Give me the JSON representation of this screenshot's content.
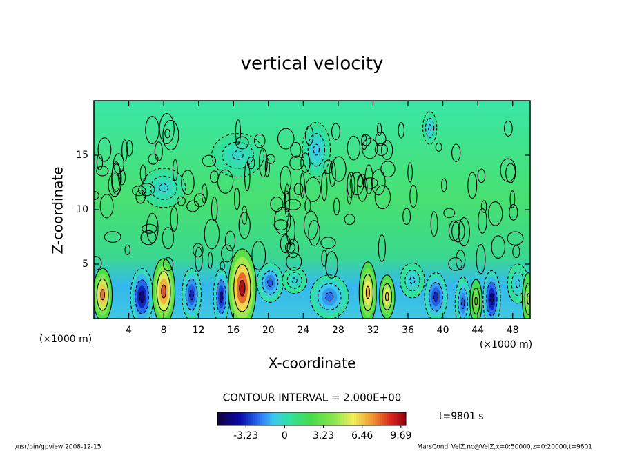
{
  "chart_data": {
    "type": "contour",
    "title": "vertical velocity",
    "x_label": "X-coordinate",
    "y_label": "Z-coordinate",
    "x_unit": "(×1000 m)",
    "xlim": [
      0,
      50
    ],
    "ylim": [
      0,
      20
    ],
    "xticks": [
      4,
      8,
      12,
      16,
      20,
      24,
      28,
      32,
      36,
      40,
      44,
      48
    ],
    "yticks": [
      5,
      10,
      15
    ],
    "contour_interval_label": "CONTOUR INTERVAL = 2.000E+00",
    "colorbar_lim": [
      -5.6,
      10.1
    ],
    "colorbar_ticks": [
      -3.23,
      0,
      3.23,
      6.46,
      9.69
    ],
    "time_label": "t=9801 s",
    "footer_left": "/usr/bin/gpview   2008-12-15",
    "footer_right": "MarsCond_VelZ.nc@VelZ,x=0:50000,z=0:20000,t=9801"
  }
}
